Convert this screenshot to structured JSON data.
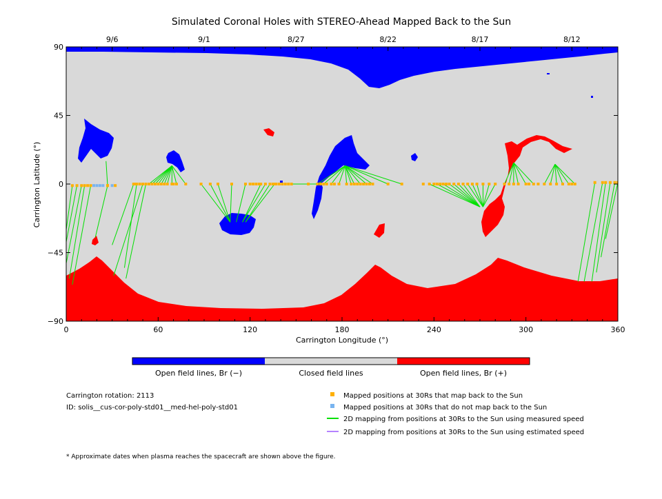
{
  "chart_data": {
    "type": "scatter",
    "title": "Simulated Coronal Holes with STEREO-Ahead Mapped Back to the Sun",
    "xlabel": "Carrington Longitude (°)",
    "ylabel": "Carrington Latitude (°)",
    "xlim": [
      0,
      360
    ],
    "ylim": [
      -90,
      90
    ],
    "x_ticks": [
      0,
      60,
      120,
      180,
      240,
      300,
      360
    ],
    "y_ticks": [
      -90,
      -45,
      0,
      45,
      90
    ],
    "grid": false,
    "top_axis": {
      "labels": [
        "9/6",
        "9/1",
        "8/27",
        "8/22",
        "8/17",
        "8/12"
      ],
      "longitudes": [
        30,
        90,
        150,
        210,
        270,
        330
      ]
    },
    "colorbar": {
      "segments": [
        {
          "label": "Open field lines, Br (−)",
          "color": "#0000ff"
        },
        {
          "label": "Closed field lines",
          "color": "#d9d9d9"
        },
        {
          "label": "Open field lines, Br (+)",
          "color": "#ff0000"
        }
      ]
    },
    "colors": {
      "negative_open": "#0000ff",
      "closed": "#d9d9d9",
      "positive_open": "#ff0000",
      "mapped": "#ffb000",
      "not_mapped": "#78b4f0",
      "measured": "#00e000",
      "estimated": "#b482ff"
    },
    "info": {
      "rotation": "Carrington rotation: 2113",
      "id": "ID: solis__cus-cor-poly-std01__med-hel-poly-std01"
    },
    "legend": [
      {
        "key": "mapped",
        "label": "Mapped positions at 30Rs that map back to the Sun",
        "marker": "square"
      },
      {
        "key": "not_mapped",
        "label": "Mapped positions at 30Rs that do not map back to the Sun",
        "marker": "square"
      },
      {
        "key": "measured",
        "label": "2D mapping from positions at 30Rs to the Sun using measured speed",
        "marker": "line"
      },
      {
        "key": "estimated",
        "label": "2D mapping from positions at 30Rs to the Sun using estimated speed",
        "marker": "line"
      }
    ],
    "footnote": "* Approximate dates when plasma reaches the spacecraft are shown above the figure.",
    "mappings": [
      {
        "from": [
          4,
          -1
        ],
        "to": [
          0,
          -30
        ]
      },
      {
        "from": [
          7,
          -1
        ],
        "to": [
          0,
          -38
        ]
      },
      {
        "from": [
          10,
          -1
        ],
        "to": [
          0,
          -52
        ]
      },
      {
        "from": [
          12,
          -1
        ],
        "to": [
          2,
          -62
        ]
      },
      {
        "from": [
          16,
          -1
        ],
        "to": [
          4,
          -66
        ]
      },
      {
        "from": [
          27,
          -1
        ],
        "to": [
          19,
          -35
        ]
      },
      {
        "from": [
          27,
          -1
        ],
        "to": [
          26,
          15
        ]
      },
      {
        "from": [
          44,
          0
        ],
        "to": [
          30,
          -40
        ]
      },
      {
        "from": [
          46,
          0
        ],
        "to": [
          38,
          -55
        ]
      },
      {
        "from": [
          50,
          0
        ],
        "to": [
          31,
          -60
        ]
      },
      {
        "from": [
          52,
          0
        ],
        "to": [
          39,
          -62
        ]
      },
      {
        "from": [
          54,
          0
        ],
        "to": [
          69,
          12
        ]
      },
      {
        "from": [
          56,
          0
        ],
        "to": [
          69,
          12
        ]
      },
      {
        "from": [
          58,
          0
        ],
        "to": [
          69,
          12
        ]
      },
      {
        "from": [
          60,
          0
        ],
        "to": [
          69,
          12
        ]
      },
      {
        "from": [
          62,
          0
        ],
        "to": [
          69,
          12
        ]
      },
      {
        "from": [
          64,
          0
        ],
        "to": [
          69,
          12
        ]
      },
      {
        "from": [
          66,
          0
        ],
        "to": [
          69,
          12
        ]
      },
      {
        "from": [
          69,
          0
        ],
        "to": [
          69,
          12
        ]
      },
      {
        "from": [
          72,
          0
        ],
        "to": [
          69,
          12
        ]
      },
      {
        "from": [
          78,
          0
        ],
        "to": [
          69,
          12
        ]
      },
      {
        "from": [
          88,
          0
        ],
        "to": [
          107,
          -25
        ]
      },
      {
        "from": [
          94,
          0
        ],
        "to": [
          107,
          -25
        ]
      },
      {
        "from": [
          99,
          0
        ],
        "to": [
          107,
          -25
        ]
      },
      {
        "from": [
          108,
          0
        ],
        "to": [
          107,
          -25
        ]
      },
      {
        "from": [
          117,
          0
        ],
        "to": [
          111,
          -25
        ]
      },
      {
        "from": [
          127,
          0
        ],
        "to": [
          115,
          -25
        ]
      },
      {
        "from": [
          130,
          0
        ],
        "to": [
          115,
          -25
        ]
      },
      {
        "from": [
          133,
          0
        ],
        "to": [
          117,
          -25
        ]
      },
      {
        "from": [
          136,
          0
        ],
        "to": [
          117,
          -25
        ]
      },
      {
        "from": [
          147,
          0
        ],
        "to": [
          164,
          0
        ]
      },
      {
        "from": [
          158,
          0
        ],
        "to": [
          164,
          0
        ]
      },
      {
        "from": [
          164,
          0
        ],
        "to": [
          182,
          12
        ]
      },
      {
        "from": [
          168,
          0
        ],
        "to": [
          182,
          12
        ]
      },
      {
        "from": [
          173,
          0
        ],
        "to": [
          182,
          12
        ]
      },
      {
        "from": [
          178,
          0
        ],
        "to": [
          182,
          12
        ]
      },
      {
        "from": [
          183,
          0
        ],
        "to": [
          182,
          12
        ]
      },
      {
        "from": [
          186,
          0
        ],
        "to": [
          182,
          12
        ]
      },
      {
        "from": [
          188,
          0
        ],
        "to": [
          182,
          12
        ]
      },
      {
        "from": [
          192,
          0
        ],
        "to": [
          182,
          12
        ]
      },
      {
        "from": [
          196,
          0
        ],
        "to": [
          182,
          12
        ]
      },
      {
        "from": [
          200,
          0
        ],
        "to": [
          182,
          12
        ]
      },
      {
        "from": [
          210,
          0
        ],
        "to": [
          182,
          12
        ]
      },
      {
        "from": [
          219,
          0
        ],
        "to": [
          182,
          12
        ]
      },
      {
        "from": [
          237,
          0
        ],
        "to": [
          270,
          -15
        ]
      },
      {
        "from": [
          242,
          0
        ],
        "to": [
          270,
          -15
        ]
      },
      {
        "from": [
          246,
          0
        ],
        "to": [
          270,
          -15
        ]
      },
      {
        "from": [
          250,
          0
        ],
        "to": [
          270,
          -15
        ]
      },
      {
        "from": [
          253,
          0
        ],
        "to": [
          270,
          -15
        ]
      },
      {
        "from": [
          256,
          0
        ],
        "to": [
          270,
          -15
        ]
      },
      {
        "from": [
          259,
          0
        ],
        "to": [
          270,
          -15
        ]
      },
      {
        "from": [
          262,
          0
        ],
        "to": [
          272,
          -15
        ]
      },
      {
        "from": [
          265,
          0
        ],
        "to": [
          272,
          -15
        ]
      },
      {
        "from": [
          268,
          0
        ],
        "to": [
          272,
          -15
        ]
      },
      {
        "from": [
          272,
          0
        ],
        "to": [
          272,
          -15
        ]
      },
      {
        "from": [
          276,
          0
        ],
        "to": [
          272,
          -15
        ]
      },
      {
        "from": [
          280,
          0
        ],
        "to": [
          272,
          -15
        ]
      },
      {
        "from": [
          286,
          0
        ],
        "to": [
          292,
          14
        ]
      },
      {
        "from": [
          289,
          0
        ],
        "to": [
          292,
          14
        ]
      },
      {
        "from": [
          292,
          0
        ],
        "to": [
          292,
          14
        ]
      },
      {
        "from": [
          295,
          0
        ],
        "to": [
          292,
          14
        ]
      },
      {
        "from": [
          300,
          0
        ],
        "to": [
          292,
          14
        ]
      },
      {
        "from": [
          305,
          0
        ],
        "to": [
          292,
          14
        ]
      },
      {
        "from": [
          312,
          0
        ],
        "to": [
          319,
          13
        ]
      },
      {
        "from": [
          316,
          0
        ],
        "to": [
          319,
          13
        ]
      },
      {
        "from": [
          320,
          0
        ],
        "to": [
          319,
          13
        ]
      },
      {
        "from": [
          324,
          0
        ],
        "to": [
          319,
          13
        ]
      },
      {
        "from": [
          328,
          0
        ],
        "to": [
          319,
          13
        ]
      },
      {
        "from": [
          332,
          0
        ],
        "to": [
          319,
          13
        ]
      },
      {
        "from": [
          345,
          1
        ],
        "to": [
          334,
          -64
        ]
      },
      {
        "from": [
          350,
          1
        ],
        "to": [
          338,
          -64
        ]
      },
      {
        "from": [
          352,
          1
        ],
        "to": [
          343,
          -64
        ]
      },
      {
        "from": [
          355,
          1
        ],
        "to": [
          346,
          -58
        ]
      },
      {
        "from": [
          358,
          1
        ],
        "to": [
          349,
          -48
        ]
      },
      {
        "from": [
          360,
          1
        ],
        "to": [
          352,
          -36
        ]
      }
    ],
    "not_mapped_positions": [
      [
        18,
        -1
      ],
      [
        20,
        -1
      ],
      [
        22,
        -1
      ],
      [
        24,
        -1
      ],
      [
        30,
        -1
      ]
    ],
    "mapped_extra_positions": [
      [
        14,
        -1
      ],
      [
        32,
        -1
      ],
      [
        45,
        0
      ],
      [
        48,
        0
      ],
      [
        70,
        0
      ],
      [
        120,
        0
      ],
      [
        122,
        0
      ],
      [
        124,
        0
      ],
      [
        126,
        0
      ],
      [
        135,
        0
      ],
      [
        137,
        0
      ],
      [
        139,
        0
      ],
      [
        141,
        0
      ],
      [
        143,
        0
      ],
      [
        145,
        0
      ],
      [
        166,
        0
      ],
      [
        170,
        0
      ],
      [
        175,
        0
      ],
      [
        190,
        0
      ],
      [
        194,
        0
      ],
      [
        198,
        0
      ],
      [
        233,
        0
      ],
      [
        240,
        0
      ],
      [
        244,
        0
      ],
      [
        248,
        0
      ],
      [
        302,
        0
      ],
      [
        308,
        0
      ],
      [
        330,
        0
      ]
    ]
  }
}
